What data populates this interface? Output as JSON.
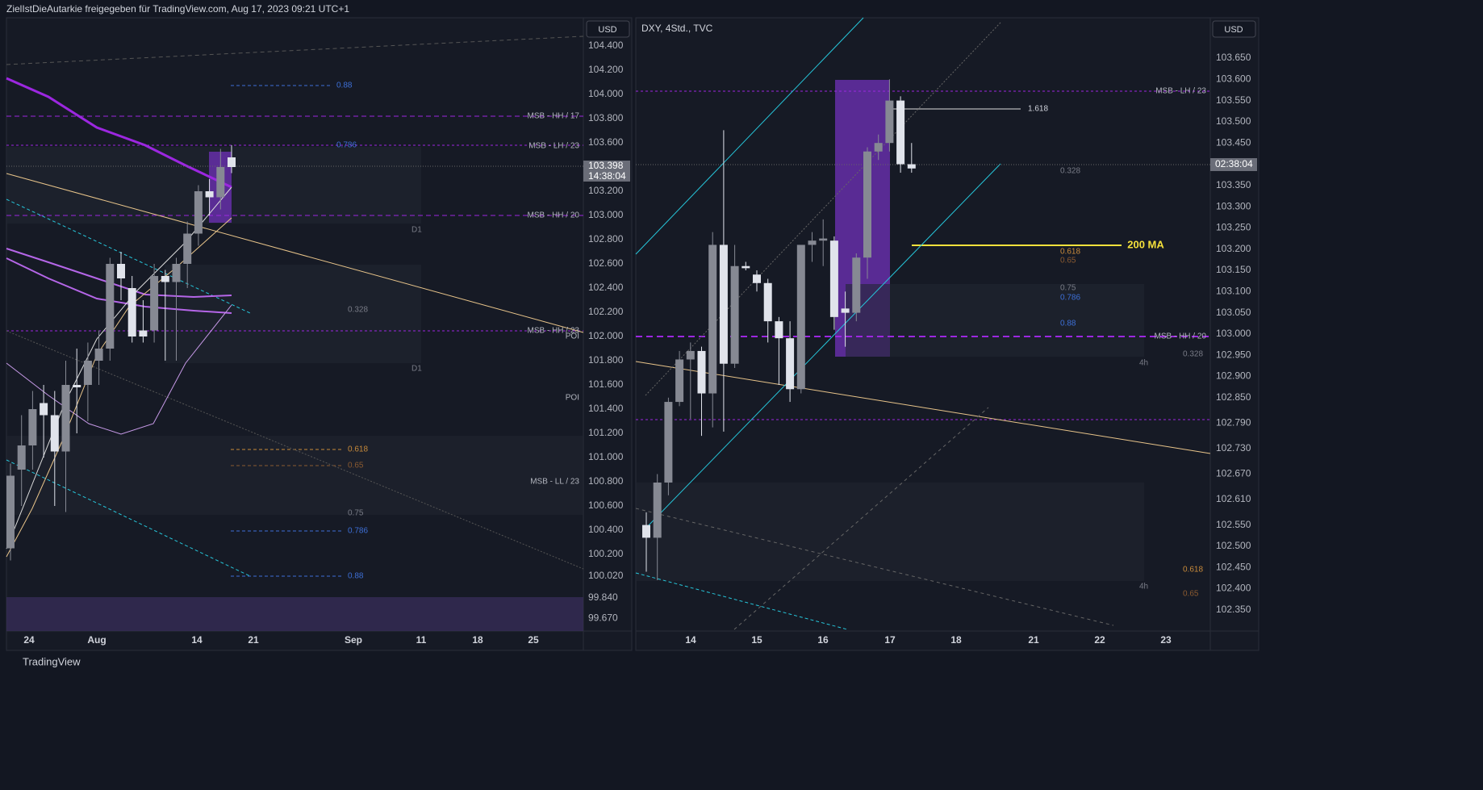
{
  "header": {
    "text": "ZielIstDieAutarkie freigegeben für TradingView.com, Aug 17, 2023 09:21 UTC+1"
  },
  "footer": {
    "brand": "TradingView"
  },
  "panels": [
    {
      "currency": "USD",
      "price": "103.398",
      "countdown": "14:38:04",
      "yticks": [
        104.4,
        104.2,
        104.0,
        103.8,
        103.6,
        103.2,
        103.0,
        102.8,
        102.6,
        102.4,
        102.2,
        102.0,
        101.8,
        101.6,
        101.4,
        101.2,
        101.0,
        100.8,
        100.6,
        100.4,
        100.2,
        100.02,
        99.84,
        99.67
      ],
      "ytick_labels": [
        "104.400",
        "104.200",
        "104.000",
        "103.800",
        "103.600",
        "103.200",
        "103.000",
        "102.800",
        "102.600",
        "102.400",
        "102.200",
        "102.000",
        "101.800",
        "101.600",
        "101.400",
        "101.200",
        "101.000",
        "100.800",
        "100.600",
        "100.400",
        "100.200",
        "100.020",
        "99.840",
        "99.670"
      ],
      "xlabels": [
        "24",
        "Aug",
        "14",
        "21",
        "Sep",
        "11",
        "18",
        "25"
      ],
      "annotations": [
        "0.88",
        "MSB - HH / 17",
        "0.786",
        "MSB - LH / 23",
        "MSB - HH / 20",
        "D1",
        "0.328",
        "MSB - HH / 23",
        "POI",
        "D1",
        "POI",
        "0.618",
        "0.65",
        "MSB - LL / 23",
        "0.75",
        "0.786",
        "0.88"
      ],
      "candles": [
        {
          "o": 100.25,
          "h": 100.95,
          "l": 100.15,
          "c": 100.85
        },
        {
          "o": 100.9,
          "h": 101.35,
          "l": 100.6,
          "c": 101.1
        },
        {
          "o": 101.1,
          "h": 101.55,
          "l": 100.9,
          "c": 101.4
        },
        {
          "o": 101.45,
          "h": 101.6,
          "l": 101.0,
          "c": 101.35
        },
        {
          "o": 101.35,
          "h": 101.55,
          "l": 100.6,
          "c": 101.05
        },
        {
          "o": 101.05,
          "h": 101.8,
          "l": 100.55,
          "c": 101.6
        },
        {
          "o": 101.6,
          "h": 101.9,
          "l": 101.2,
          "c": 101.58
        },
        {
          "o": 101.6,
          "h": 101.95,
          "l": 101.3,
          "c": 101.8
        },
        {
          "o": 101.8,
          "h": 102.05,
          "l": 101.6,
          "c": 101.9
        },
        {
          "o": 101.9,
          "h": 102.65,
          "l": 101.8,
          "c": 102.6
        },
        {
          "o": 102.6,
          "h": 102.7,
          "l": 102.3,
          "c": 102.48
        },
        {
          "o": 102.4,
          "h": 102.5,
          "l": 101.95,
          "c": 102.0
        },
        {
          "o": 102.05,
          "h": 102.3,
          "l": 101.95,
          "c": 102.0
        },
        {
          "o": 102.05,
          "h": 102.6,
          "l": 101.95,
          "c": 102.5
        },
        {
          "o": 102.5,
          "h": 102.55,
          "l": 101.8,
          "c": 102.45
        },
        {
          "o": 102.45,
          "h": 102.65,
          "l": 101.8,
          "c": 102.6
        },
        {
          "o": 102.6,
          "h": 102.95,
          "l": 102.4,
          "c": 102.85
        },
        {
          "o": 102.85,
          "h": 103.25,
          "l": 102.75,
          "c": 103.2
        },
        {
          "o": 103.2,
          "h": 103.3,
          "l": 103.0,
          "c": 103.15
        },
        {
          "o": 103.15,
          "h": 103.55,
          "l": 103.05,
          "c": 103.4
        },
        {
          "o": 103.48,
          "h": 103.58,
          "l": 103.35,
          "c": 103.4
        }
      ]
    },
    {
      "title": "DXY, 4Std., TVC",
      "currency": "USD",
      "countdown": "02:38:04",
      "yticks": [
        103.65,
        103.6,
        103.55,
        103.5,
        103.45,
        103.35,
        103.3,
        103.25,
        103.2,
        103.15,
        103.1,
        103.05,
        103.0,
        102.95,
        102.9,
        102.85,
        102.79,
        102.73,
        102.67,
        102.61,
        102.55,
        102.5,
        102.45,
        102.4,
        102.35
      ],
      "ytick_labels": [
        "103.650",
        "103.600",
        "103.550",
        "103.500",
        "103.450",
        "103.350",
        "103.300",
        "103.250",
        "103.200",
        "103.150",
        "103.100",
        "103.050",
        "103.000",
        "102.950",
        "102.900",
        "102.850",
        "102.790",
        "102.730",
        "102.670",
        "102.610",
        "102.550",
        "102.500",
        "102.450",
        "102.400",
        "102.350"
      ],
      "xlabels": [
        "14",
        "15",
        "16",
        "17",
        "18",
        "21",
        "22",
        "23"
      ],
      "annotations": [
        "MSB - LH / 23",
        "1.618",
        "0.328",
        "200 MA",
        "0.618",
        "0.65",
        "0.75",
        "0.786",
        "0.88",
        "MSB - HH / 20",
        "0.328",
        "4h",
        "0.618",
        "4h",
        "0.65"
      ],
      "candles": [
        {
          "o": 102.55,
          "h": 102.58,
          "l": 102.44,
          "c": 102.52
        },
        {
          "o": 102.52,
          "h": 102.67,
          "l": 102.42,
          "c": 102.65
        },
        {
          "o": 102.65,
          "h": 102.85,
          "l": 102.62,
          "c": 102.84
        },
        {
          "o": 102.84,
          "h": 102.96,
          "l": 102.83,
          "c": 102.94
        },
        {
          "o": 102.94,
          "h": 102.98,
          "l": 102.8,
          "c": 102.96
        },
        {
          "o": 102.96,
          "h": 102.97,
          "l": 102.76,
          "c": 102.86
        },
        {
          "o": 102.86,
          "h": 103.24,
          "l": 102.78,
          "c": 103.21
        },
        {
          "o": 103.21,
          "h": 103.48,
          "l": 102.77,
          "c": 102.93
        },
        {
          "o": 102.93,
          "h": 103.21,
          "l": 102.92,
          "c": 103.16
        },
        {
          "o": 103.16,
          "h": 103.17,
          "l": 103.15,
          "c": 103.155
        },
        {
          "o": 103.14,
          "h": 103.15,
          "l": 103.1,
          "c": 103.12
        },
        {
          "o": 103.12,
          "h": 103.13,
          "l": 102.98,
          "c": 103.03
        },
        {
          "o": 103.03,
          "h": 103.04,
          "l": 102.88,
          "c": 102.99
        },
        {
          "o": 102.99,
          "h": 103.03,
          "l": 102.84,
          "c": 102.87
        },
        {
          "o": 102.87,
          "h": 103.21,
          "l": 102.86,
          "c": 103.21
        },
        {
          "o": 103.21,
          "h": 103.24,
          "l": 103.17,
          "c": 103.22
        },
        {
          "o": 103.22,
          "h": 103.27,
          "l": 103.16,
          "c": 103.225
        },
        {
          "o": 103.22,
          "h": 103.23,
          "l": 103.01,
          "c": 103.04
        },
        {
          "o": 103.06,
          "h": 103.1,
          "l": 102.97,
          "c": 103.05
        },
        {
          "o": 103.05,
          "h": 103.19,
          "l": 103.03,
          "c": 103.18
        },
        {
          "o": 103.18,
          "h": 103.44,
          "l": 103.13,
          "c": 103.43
        },
        {
          "o": 103.43,
          "h": 103.47,
          "l": 103.41,
          "c": 103.45
        },
        {
          "o": 103.45,
          "h": 103.6,
          "l": 103.43,
          "c": 103.55
        },
        {
          "o": 103.55,
          "h": 103.56,
          "l": 103.38,
          "c": 103.4
        },
        {
          "o": 103.4,
          "h": 103.45,
          "l": 103.38,
          "c": 103.39
        }
      ]
    }
  ]
}
